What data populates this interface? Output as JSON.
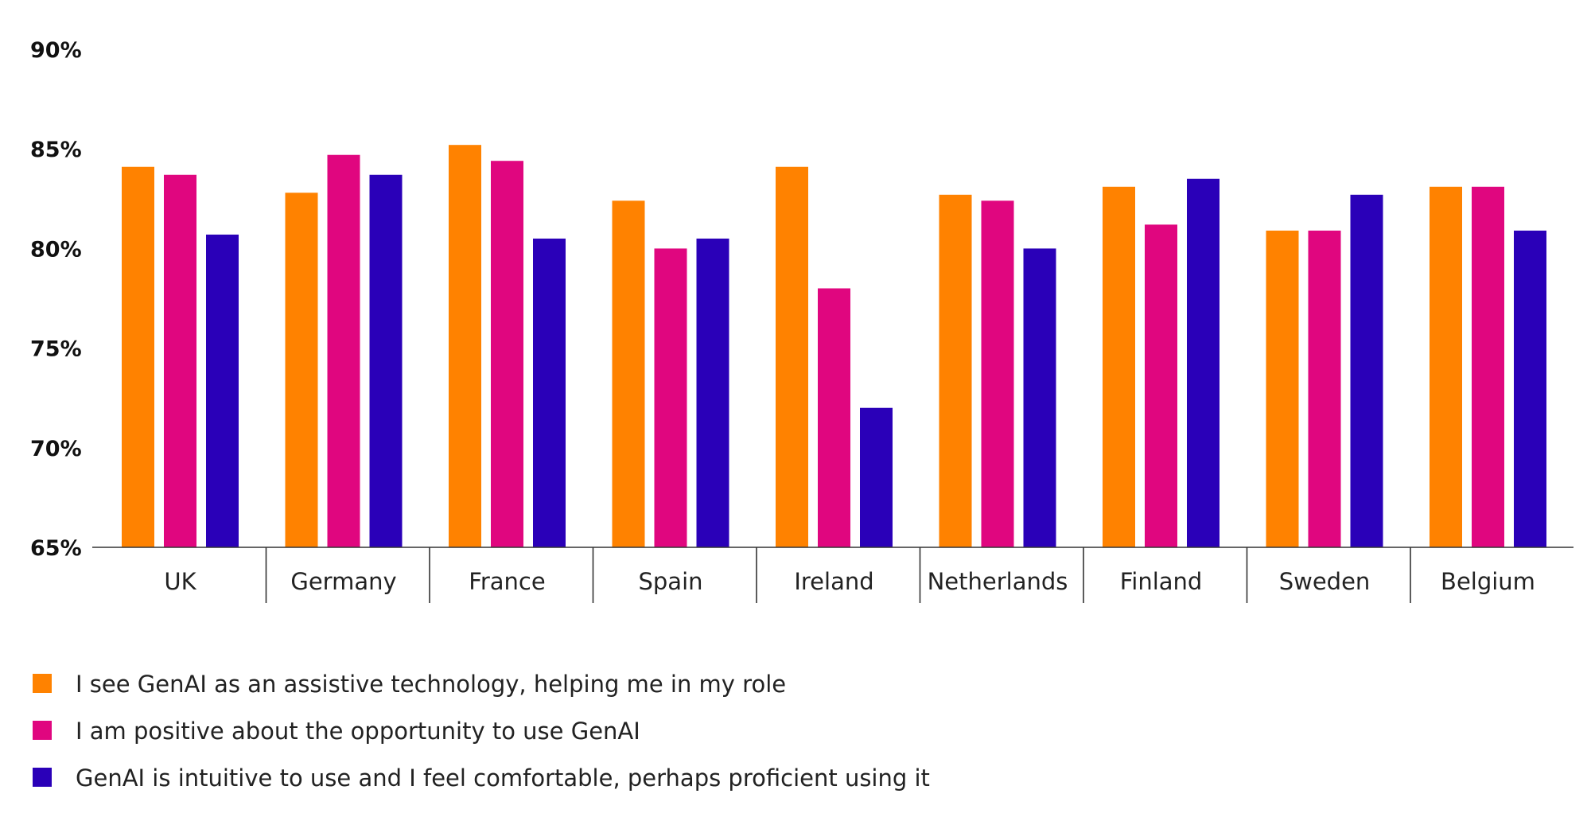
{
  "chart_data": {
    "type": "bar",
    "title": "",
    "xlabel": "",
    "ylabel": "",
    "ylim": [
      65,
      90
    ],
    "yticks": [
      "65%",
      "70%",
      "75%",
      "80%",
      "85%",
      "90%"
    ],
    "ytick_values": [
      65,
      70,
      75,
      80,
      85,
      90
    ],
    "grid": false,
    "legend_position": "bottom-left",
    "categories": [
      "UK",
      "Germany",
      "France",
      "Spain",
      "Ireland",
      "Netherlands",
      "Finland",
      "Sweden",
      "Belgium"
    ],
    "series": [
      {
        "name": "I see GenAI as an assistive technology, helping me in my role",
        "color": "#FF8200",
        "values": [
          84.1,
          82.8,
          85.2,
          82.4,
          84.1,
          82.7,
          83.1,
          80.9,
          83.1
        ]
      },
      {
        "name": "I am positive about the opportunity to use GenAI",
        "color": "#E0067F",
        "values": [
          83.7,
          84.7,
          84.4,
          80.0,
          78.0,
          82.4,
          81.2,
          80.9,
          83.1
        ]
      },
      {
        "name": "GenAI is intuitive to use and I feel comfortable, perhaps proficient using it",
        "color": "#2A00B8",
        "values": [
          80.7,
          83.7,
          80.5,
          80.5,
          72.0,
          80.0,
          83.5,
          82.7,
          80.9
        ]
      }
    ]
  }
}
